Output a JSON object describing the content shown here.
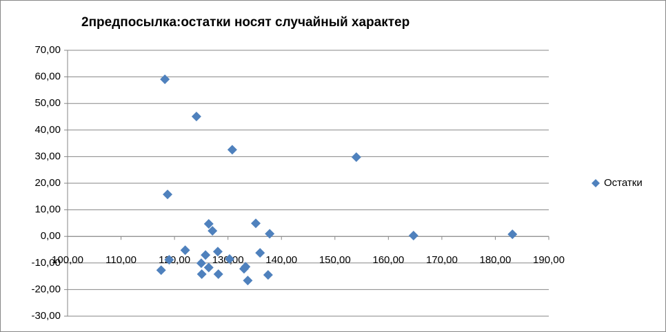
{
  "chart_data": {
    "type": "scatter",
    "title": "2предпосылка:остатки носят случайный характер",
    "x": [
      118.2,
      124.1,
      130.8,
      154.0,
      118.7,
      126.4,
      127.1,
      135.2,
      137.8,
      164.7,
      183.2,
      122.0,
      125.8,
      128.1,
      136.0,
      119.0,
      125.0,
      126.4,
      130.3,
      133.3,
      133.0,
      117.5,
      125.1,
      128.2,
      137.5,
      133.7
    ],
    "series": [
      {
        "name": "Остатки",
        "color": "#4f81bd",
        "values": [
          59.1,
          45.1,
          32.6,
          29.8,
          15.8,
          4.7,
          2.1,
          4.9,
          1.0,
          0.3,
          0.8,
          -5.2,
          -7.0,
          -5.7,
          -6.2,
          -8.8,
          -10.1,
          -11.7,
          -8.5,
          -11.4,
          -12.2,
          -12.7,
          -14.2,
          -14.2,
          -14.5,
          -16.6
        ]
      }
    ],
    "xlim": [
      100,
      190
    ],
    "xticks": [
      {
        "value": 100,
        "label": "100,00"
      },
      {
        "value": 110,
        "label": "110,00"
      },
      {
        "value": 120,
        "label": "120,00"
      },
      {
        "value": 130,
        "label": "130,00"
      },
      {
        "value": 140,
        "label": "140,00"
      },
      {
        "value": 150,
        "label": "150,00"
      },
      {
        "value": 160,
        "label": "160,00"
      },
      {
        "value": 170,
        "label": "170,00"
      },
      {
        "value": 180,
        "label": "180,00"
      },
      {
        "value": 190,
        "label": "190,00"
      }
    ],
    "ylim": [
      -30,
      70
    ],
    "yticks": [
      {
        "value": -30,
        "label": "-30,00"
      },
      {
        "value": -20,
        "label": "-20,00"
      },
      {
        "value": -10,
        "label": "-10,00"
      },
      {
        "value": 0,
        "label": "0,00"
      },
      {
        "value": 10,
        "label": "10,00"
      },
      {
        "value": 20,
        "label": "20,00"
      },
      {
        "value": 30,
        "label": "30,00"
      },
      {
        "value": 40,
        "label": "40,00"
      },
      {
        "value": 50,
        "label": "50,00"
      },
      {
        "value": 60,
        "label": "60,00"
      },
      {
        "value": 70,
        "label": "70,00"
      }
    ],
    "grid": true,
    "legend": "right"
  }
}
